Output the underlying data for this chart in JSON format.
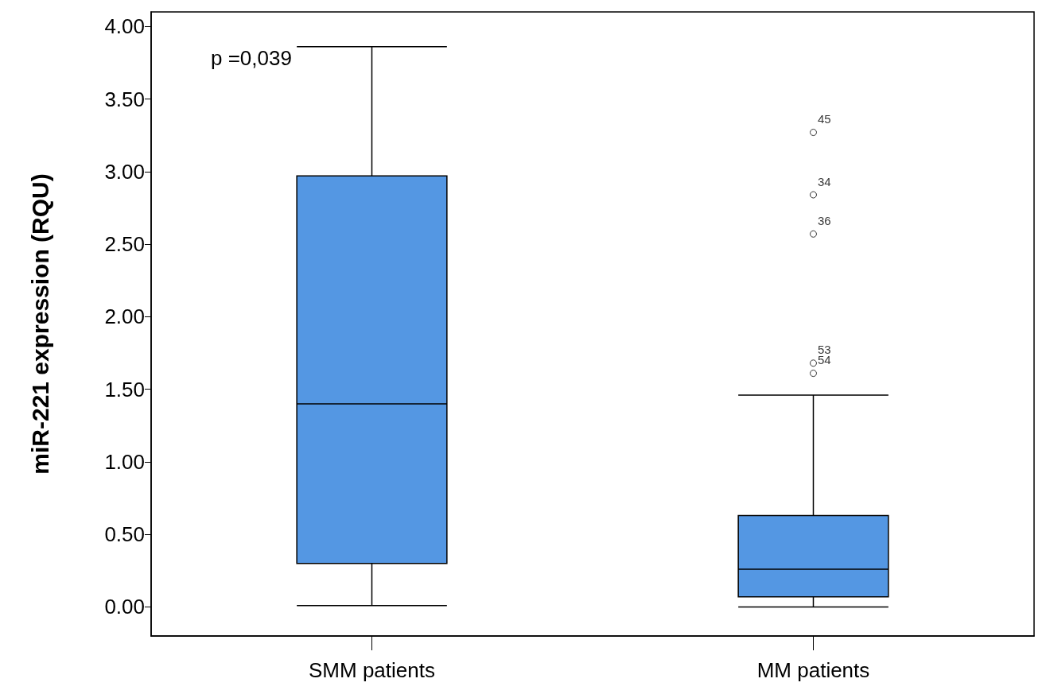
{
  "chart_data": {
    "type": "box",
    "ylabel": "miR-221 expression (RQU)",
    "categories": [
      "SMM patients",
      "MM patients"
    ],
    "color": "#5497e3",
    "boxes": [
      {
        "low": 0.01,
        "q1": 0.3,
        "median": 1.4,
        "q3": 2.97,
        "high": 3.86
      },
      {
        "low": 0.0,
        "q1": 0.07,
        "median": 0.26,
        "q3": 0.63,
        "high": 1.46,
        "outliers": [
          3.27,
          2.84,
          2.57,
          1.68,
          1.61
        ]
      }
    ],
    "ylim": [
      -0.2,
      4.1
    ],
    "yticks": [
      {
        "value": 0,
        "label": "0.00"
      },
      {
        "value": 0.5,
        "label": "0.50"
      },
      {
        "value": 1,
        "label": "1.00"
      },
      {
        "value": 1.5,
        "label": "1.50"
      },
      {
        "value": 2,
        "label": "2.00"
      },
      {
        "value": 2.5,
        "label": "2.50"
      },
      {
        "value": 3,
        "label": "3.00"
      },
      {
        "value": 3.5,
        "label": "3.50"
      },
      {
        "value": 4,
        "label": "4.00"
      }
    ],
    "grid": false,
    "annotations": [
      "p =0,039",
      "45",
      "34",
      "36",
      "53",
      "54"
    ]
  }
}
